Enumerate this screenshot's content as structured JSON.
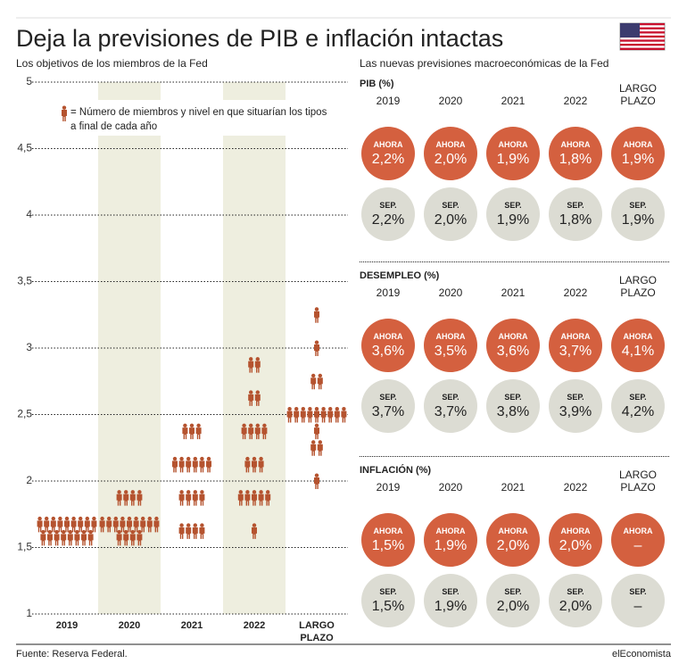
{
  "header": {
    "title": "Deja la previsiones de PIB e inflación intactas"
  },
  "chart_data": {
    "type": "dotplot",
    "subtitle": "Los objetivos de los miembros de la Fed",
    "legend": "= Número de miembros y nivel en que situarían los tipos a final de cada año",
    "categories": [
      "2019",
      "2020",
      "2021",
      "2022",
      "LARGO PLAZO"
    ],
    "color": "#b5532f",
    "ylim": [
      1,
      5
    ],
    "yticks": [
      1,
      {
        "value": 1.5,
        "label": "1,5"
      },
      2,
      {
        "value": 2.5,
        "label": "2,5"
      },
      3,
      {
        "value": 3.5,
        "label": "3,5"
      },
      4,
      {
        "value": 4.5,
        "label": "4,5"
      },
      5
    ],
    "grid": true,
    "dots": [
      [
        {
          "rate": 1.625,
          "count": 17
        }
      ],
      [
        {
          "rate": 1.625,
          "count": 13
        },
        {
          "rate": 1.875,
          "count": 4
        }
      ],
      [
        {
          "rate": 1.625,
          "count": 4
        },
        {
          "rate": 1.875,
          "count": 4
        },
        {
          "rate": 2.125,
          "count": 6
        },
        {
          "rate": 2.375,
          "count": 3
        }
      ],
      [
        {
          "rate": 1.625,
          "count": 1
        },
        {
          "rate": 1.875,
          "count": 5
        },
        {
          "rate": 2.125,
          "count": 3
        },
        {
          "rate": 2.375,
          "count": 4
        },
        {
          "rate": 2.625,
          "count": 2
        },
        {
          "rate": 2.875,
          "count": 2
        }
      ],
      [
        {
          "rate": 2.0,
          "count": 1
        },
        {
          "rate": 2.25,
          "count": 2
        },
        {
          "rate": 2.375,
          "count": 1
        },
        {
          "rate": 2.5,
          "count": 9
        },
        {
          "rate": 2.75,
          "count": 2
        },
        {
          "rate": 3.0,
          "count": 1
        },
        {
          "rate": 3.25,
          "count": 1
        }
      ]
    ]
  },
  "forecasts": {
    "subtitle": "Las nuevas previsiones macroeconómicas de la Fed",
    "now_label": "AHORA",
    "prev_label": "SEP.",
    "panels": [
      {
        "title": "PIB (%)",
        "years": [
          "2019",
          "2020",
          "2021",
          "2022",
          "LARGO PLAZO"
        ],
        "now": [
          "2,2%",
          "2,0%",
          "1,9%",
          "1,8%",
          "1,9%"
        ],
        "prev": [
          "2,2%",
          "2,0%",
          "1,9%",
          "1,8%",
          "1,9%"
        ]
      },
      {
        "title": "DESEMPLEO (%)",
        "years": [
          "2019",
          "2020",
          "2021",
          "2022",
          "LARGO PLAZO"
        ],
        "now": [
          "3,6%",
          "3,5%",
          "3,6%",
          "3,7%",
          "4,1%"
        ],
        "prev": [
          "3,7%",
          "3,7%",
          "3,8%",
          "3,9%",
          "4,2%"
        ]
      },
      {
        "title": "INFLACIÓN (%)",
        "years": [
          "2019",
          "2020",
          "2021",
          "2022",
          "LARGO PLAZO"
        ],
        "now": [
          "1,5%",
          "1,9%",
          "2,0%",
          "2,0%",
          "–"
        ],
        "prev": [
          "1,5%",
          "1,9%",
          "2,0%",
          "2,0%",
          "–"
        ]
      }
    ]
  },
  "footer": {
    "source": "Fuente: Reserva Federal.",
    "brand": "elEconomista"
  }
}
